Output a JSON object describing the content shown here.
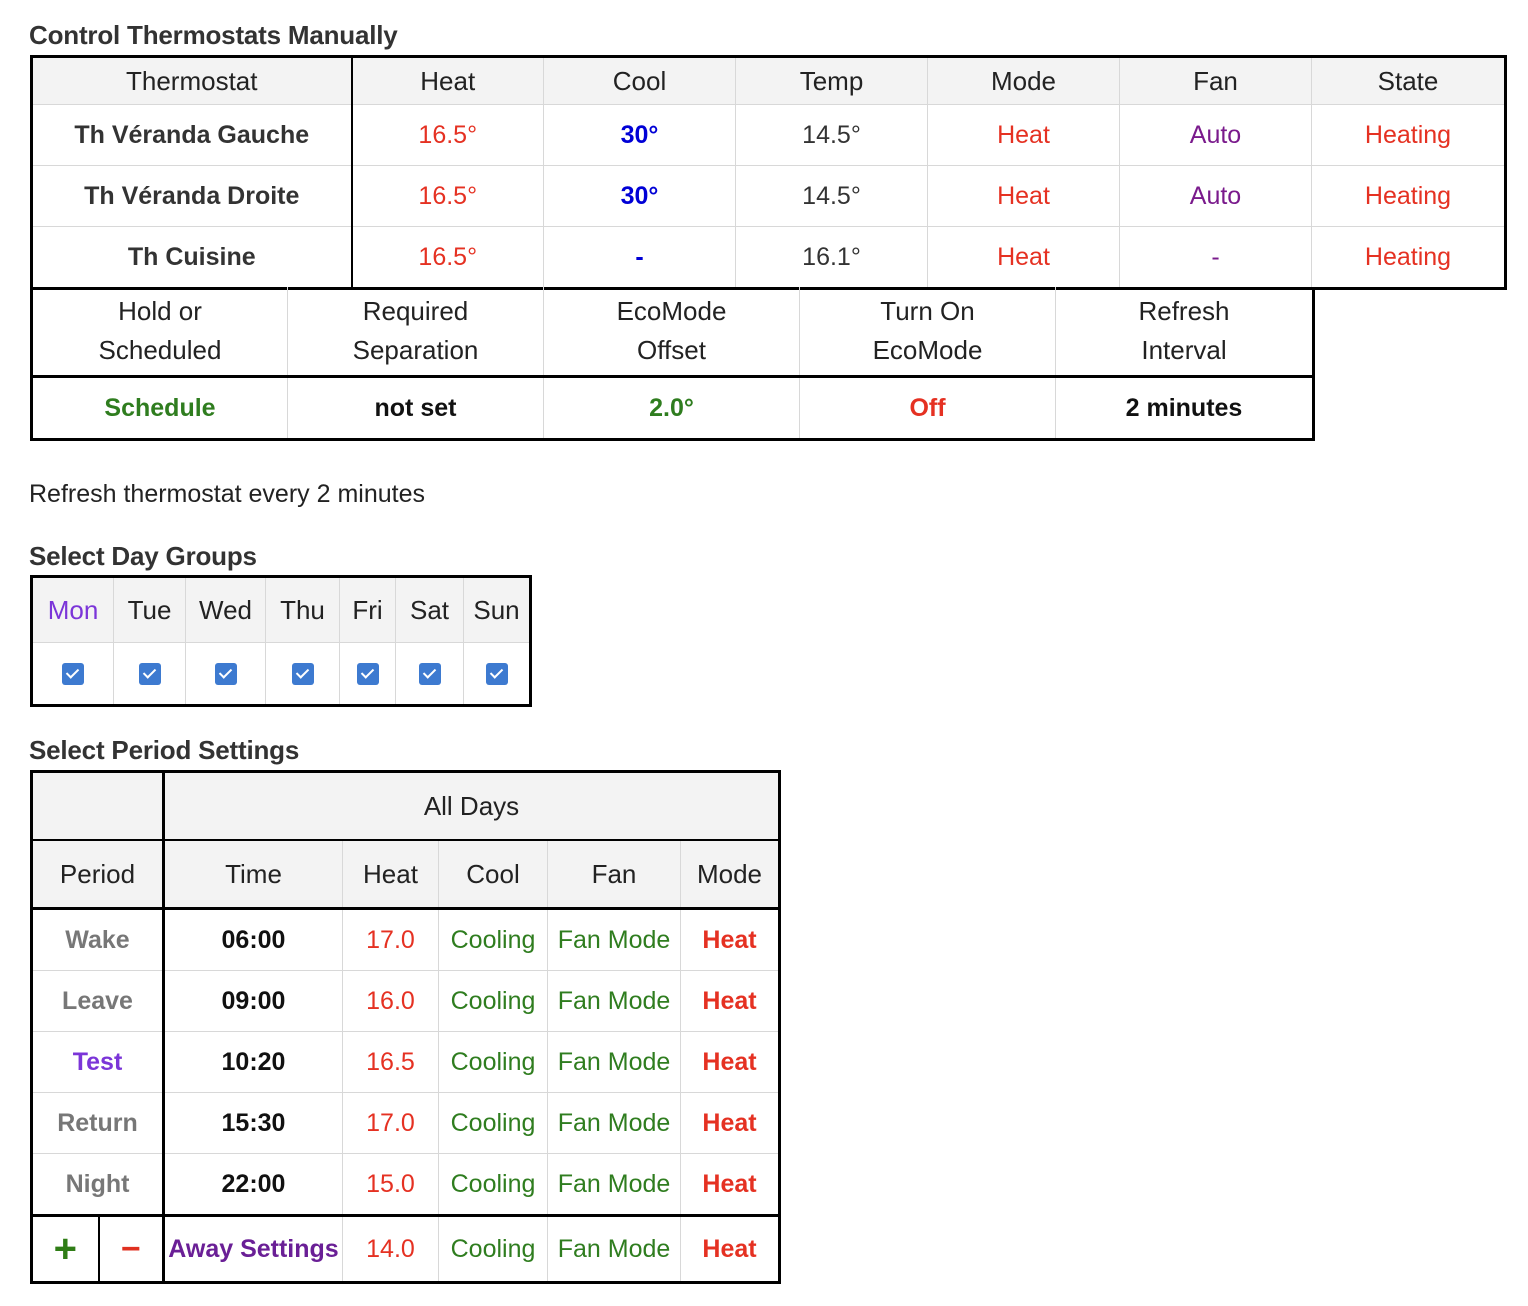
{
  "colors": {
    "heat": "#e53122",
    "cool": "#0000d6",
    "fan": "#7a1a8c",
    "green": "#2f7d1f",
    "violet": "#7b35d8",
    "checkbox": "#3d7ad0"
  },
  "manual": {
    "title": "Control Thermostats Manually",
    "headers": [
      "Thermostat",
      "Heat",
      "Cool",
      "Temp",
      "Mode",
      "Fan",
      "State"
    ],
    "rows": [
      {
        "name": "Th Véranda Gauche",
        "heat": "16.5°",
        "cool": "30°",
        "temp": "14.5°",
        "mode": "Heat",
        "fan": "Auto",
        "state": "Heating"
      },
      {
        "name": "Th Véranda Droite",
        "heat": "16.5°",
        "cool": "30°",
        "temp": "14.5°",
        "mode": "Heat",
        "fan": "Auto",
        "state": "Heating"
      },
      {
        "name": "Th Cuisine",
        "heat": "16.5°",
        "cool": "-",
        "temp": "16.1°",
        "mode": "Heat",
        "fan": "-",
        "state": "Heating"
      }
    ]
  },
  "settings": {
    "headers": [
      "Hold or Scheduled",
      "Required Separation",
      "EcoMode Offset",
      "Turn On EcoMode",
      "Refresh Interval"
    ],
    "values": [
      "Schedule",
      "not set",
      "2.0°",
      "Off",
      "2 minutes"
    ]
  },
  "refresh_text": "Refresh thermostat every 2 minutes",
  "days": {
    "title": "Select Day Groups",
    "labels": [
      "Mon",
      "Tue",
      "Wed",
      "Thu",
      "Fri",
      "Sat",
      "Sun"
    ],
    "checked": [
      true,
      true,
      true,
      true,
      true,
      true,
      true
    ]
  },
  "periods": {
    "title": "Select Period Settings",
    "group_label": "All Days",
    "headers": [
      "Period",
      "Time",
      "Heat",
      "Cool",
      "Fan",
      "Mode"
    ],
    "rows": [
      {
        "period": "Wake",
        "time": "06:00",
        "heat": "17.0",
        "cool": "Cooling",
        "fan": "Fan Mode",
        "mode": "Heat"
      },
      {
        "period": "Leave",
        "time": "09:00",
        "heat": "16.0",
        "cool": "Cooling",
        "fan": "Fan Mode",
        "mode": "Heat"
      },
      {
        "period": "Test",
        "time": "10:20",
        "heat": "16.5",
        "cool": "Cooling",
        "fan": "Fan Mode",
        "mode": "Heat"
      },
      {
        "period": "Return",
        "time": "15:30",
        "heat": "17.0",
        "cool": "Cooling",
        "fan": "Fan Mode",
        "mode": "Heat"
      },
      {
        "period": "Night",
        "time": "22:00",
        "heat": "15.0",
        "cool": "Cooling",
        "fan": "Fan Mode",
        "mode": "Heat"
      }
    ],
    "away": {
      "add": "+",
      "remove": "−",
      "label": "Away Settings",
      "heat": "14.0",
      "cool": "Cooling",
      "fan": "Fan Mode",
      "mode": "Heat"
    }
  }
}
